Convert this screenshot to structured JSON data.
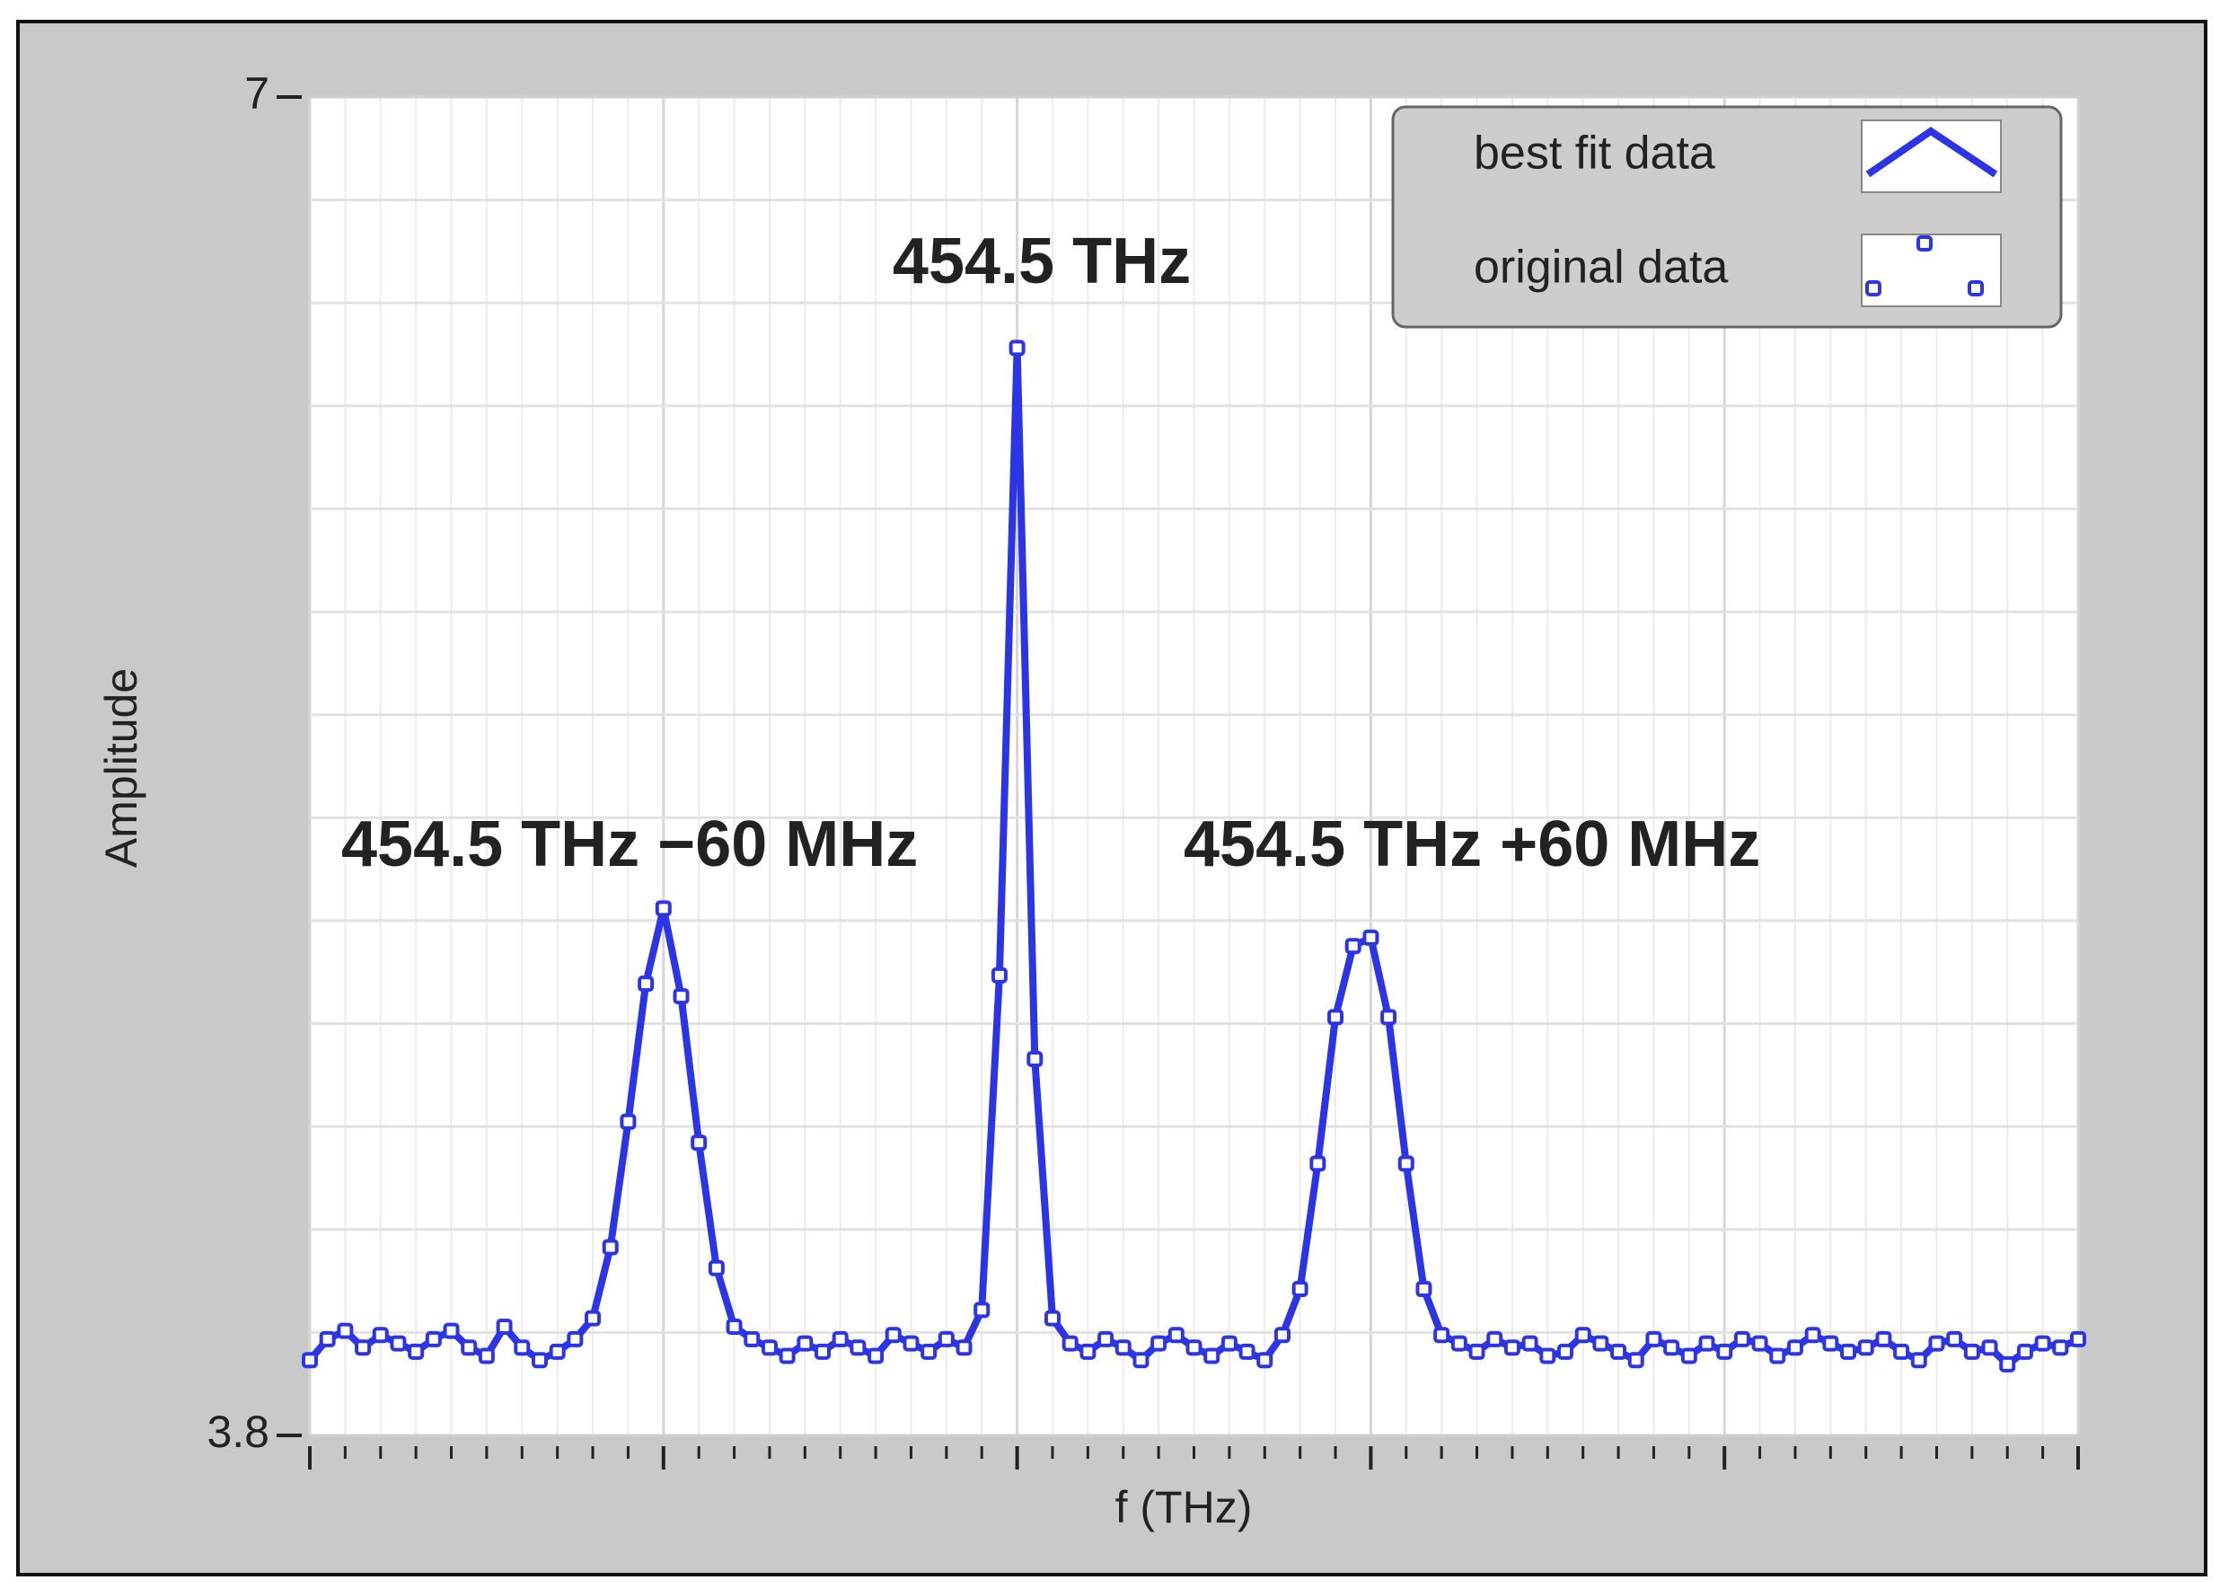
{
  "chart_data": {
    "type": "line",
    "x_label": "f (THz)",
    "y_label": "Amplitude",
    "ylim": [
      3.8,
      7
    ],
    "yticks": [
      3.8,
      7
    ],
    "grid": true,
    "legend": "upper right",
    "annotations": [
      "454.5 THz",
      "454.5 THz −60 MHz",
      "454.5 THz +60 MHz"
    ],
    "series": [
      {
        "name": "best fit data",
        "color": "#2c35e6",
        "style": "line",
        "values": [
          3.98,
          4.03,
          4.05,
          4.01,
          4.04,
          4.02,
          4.0,
          4.03,
          4.05,
          4.01,
          3.99,
          4.06,
          4.01,
          3.98,
          4.0,
          4.03,
          4.08,
          4.25,
          4.55,
          4.88,
          5.06,
          4.85,
          4.5,
          4.2,
          4.06,
          4.03,
          4.01,
          3.99,
          4.02,
          4.0,
          4.03,
          4.01,
          3.99,
          4.04,
          4.02,
          4.0,
          4.03,
          4.01,
          4.1,
          4.9,
          6.4,
          4.7,
          4.08,
          4.02,
          4.0,
          4.03,
          4.01,
          3.98,
          4.02,
          4.04,
          4.01,
          3.99,
          4.02,
          4.0,
          3.98,
          4.04,
          4.15,
          4.45,
          4.8,
          4.97,
          4.99,
          4.8,
          4.45,
          4.15,
          4.04,
          4.02,
          4.0,
          4.03,
          4.01,
          4.02,
          3.99,
          4.0,
          4.04,
          4.02,
          4.0,
          3.98,
          4.03,
          4.01,
          3.99,
          4.02,
          4.0,
          4.03,
          4.02,
          3.99,
          4.01,
          4.04,
          4.02,
          4.0,
          4.01,
          4.03,
          4.0,
          3.98,
          4.02,
          4.03,
          4.0,
          4.01,
          3.97,
          4.0,
          4.02,
          4.01,
          4.03
        ]
      },
      {
        "name": "original data",
        "color": "#2c35e6",
        "style": "markers",
        "values": [
          3.98,
          4.03,
          4.05,
          4.01,
          4.04,
          4.02,
          4.0,
          4.03,
          4.05,
          4.01,
          3.99,
          4.06,
          4.01,
          3.98,
          4.0,
          4.03,
          4.08,
          4.25,
          4.55,
          4.88,
          5.06,
          4.85,
          4.5,
          4.2,
          4.06,
          4.03,
          4.01,
          3.99,
          4.02,
          4.0,
          4.03,
          4.01,
          3.99,
          4.04,
          4.02,
          4.0,
          4.03,
          4.01,
          4.1,
          4.9,
          6.4,
          4.7,
          4.08,
          4.02,
          4.0,
          4.03,
          4.01,
          3.98,
          4.02,
          4.04,
          4.01,
          3.99,
          4.02,
          4.0,
          3.98,
          4.04,
          4.15,
          4.45,
          4.8,
          4.97,
          4.99,
          4.8,
          4.45,
          4.15,
          4.04,
          4.02,
          4.0,
          4.03,
          4.01,
          4.02,
          3.99,
          4.0,
          4.04,
          4.02,
          4.0,
          3.98,
          4.03,
          4.01,
          3.99,
          4.02,
          4.0,
          4.03,
          4.02,
          3.99,
          4.01,
          4.04,
          4.02,
          4.0,
          4.01,
          4.03,
          4.0,
          3.98,
          4.02,
          4.03,
          4.0,
          4.01,
          3.97,
          4.0,
          4.02,
          4.01,
          4.03
        ]
      }
    ]
  }
}
